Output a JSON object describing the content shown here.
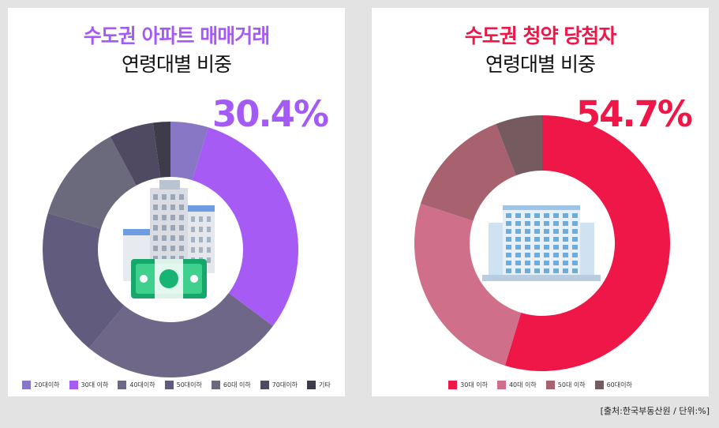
{
  "source": "[출처:한국부동산원 / 단위:%]",
  "chart_data": [
    {
      "type": "pie",
      "title": "수도권 아파트 매매거래",
      "subtitle": "연령대별 비중",
      "highlight": "30.4%",
      "categories": [
        "20대이하",
        "30대 이하",
        "40대이하",
        "50대이하",
        "60대 이하",
        "70대이하",
        "기타"
      ],
      "values": [
        4.8,
        30.4,
        25.8,
        18.6,
        12.6,
        5.6,
        2.2
      ],
      "colors": [
        "#8877c4",
        "#a65cf4",
        "#6e6788",
        "#615b7d",
        "#6b6a7c",
        "#4f4a62",
        "#3e3c4b"
      ],
      "legend_position": "bottom"
    },
    {
      "type": "pie",
      "title": "수도권 청약 당첨자",
      "subtitle": "연령대별 비중",
      "highlight": "54.7%",
      "categories": [
        "30대 이하",
        "40대 이하",
        "50대 이하",
        "60대이하"
      ],
      "values": [
        54.7,
        25.3,
        14.1,
        5.9
      ],
      "colors": [
        "#ee1747",
        "#cf6f89",
        "#a8626f",
        "#755a5f"
      ],
      "legend_position": "bottom"
    }
  ]
}
